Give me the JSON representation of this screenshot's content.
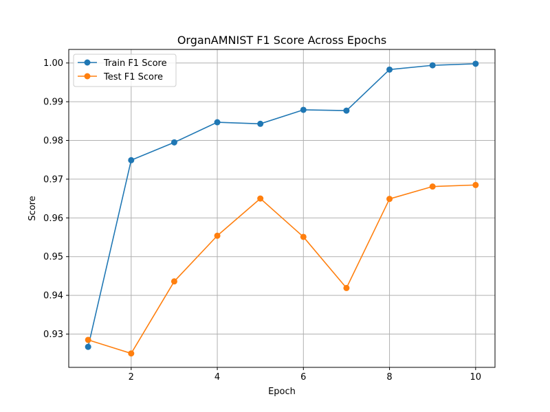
{
  "chart_data": {
    "type": "line",
    "title": "OrganAMNIST F1 Score Across Epochs",
    "xlabel": "Epoch",
    "ylabel": "Score",
    "xlim": [
      0.55,
      10.45
    ],
    "ylim": [
      0.9214,
      1.0035
    ],
    "xticks": [
      2,
      4,
      6,
      8,
      10
    ],
    "yticks": [
      0.93,
      0.94,
      0.95,
      0.96,
      0.97,
      0.98,
      0.99,
      1.0
    ],
    "ytick_labels": [
      "0.93",
      "0.94",
      "0.95",
      "0.96",
      "0.97",
      "0.98",
      "0.99",
      "1.00"
    ],
    "grid": true,
    "legend_position": "top-left",
    "x": [
      1,
      2,
      3,
      4,
      5,
      6,
      7,
      8,
      9,
      10
    ],
    "series": [
      {
        "name": "Train F1 Score",
        "color": "#1f77b4",
        "values": [
          0.9267,
          0.9749,
          0.9795,
          0.9847,
          0.9843,
          0.9879,
          0.9877,
          0.9983,
          0.9994,
          0.9998
        ]
      },
      {
        "name": "Test F1 Score",
        "color": "#ff7f0e",
        "values": [
          0.9285,
          0.925,
          0.9436,
          0.9554,
          0.965,
          0.9551,
          0.9419,
          0.9649,
          0.9681,
          0.9685
        ]
      }
    ]
  }
}
